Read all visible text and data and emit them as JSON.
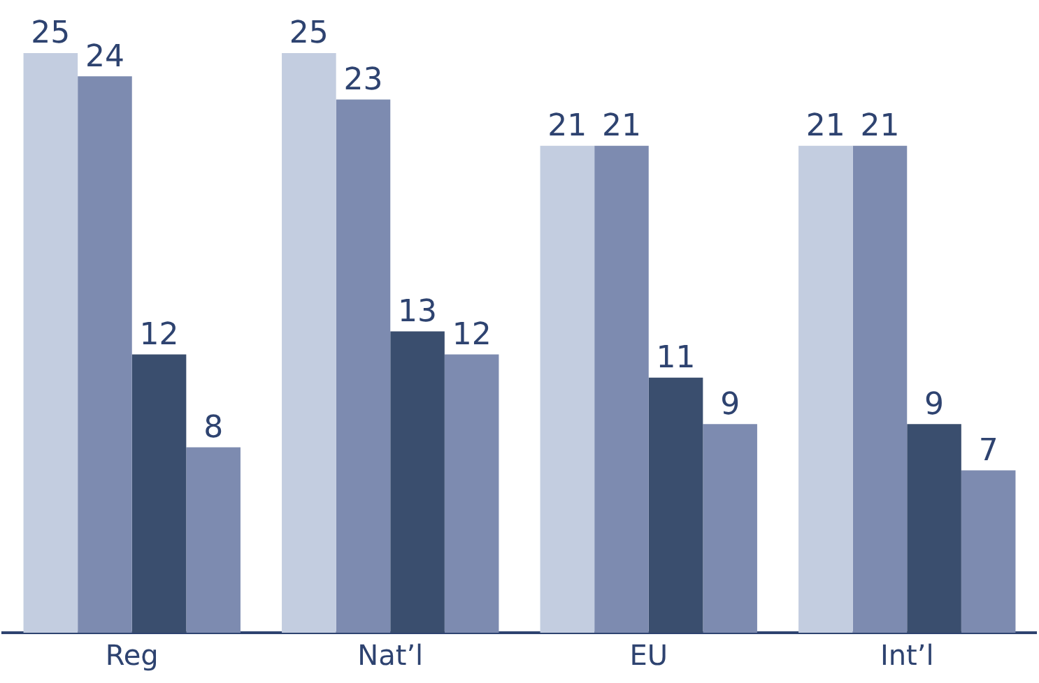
{
  "chart_data": {
    "type": "bar",
    "categories": [
      "Reg",
      "Nat’l",
      "EU",
      "Int’l"
    ],
    "series": [
      {
        "color": "#c3cde0",
        "values": [
          25,
          25,
          21,
          21
        ]
      },
      {
        "color": "#7d8bb0",
        "values": [
          24,
          23,
          21,
          21
        ]
      },
      {
        "color": "#3a4e6e",
        "values": [
          12,
          13,
          11,
          9
        ]
      },
      {
        "color": "#7d8bb0",
        "values": [
          8,
          12,
          9,
          7
        ]
      }
    ],
    "data_labels": true,
    "legend": false,
    "grid": false
  }
}
